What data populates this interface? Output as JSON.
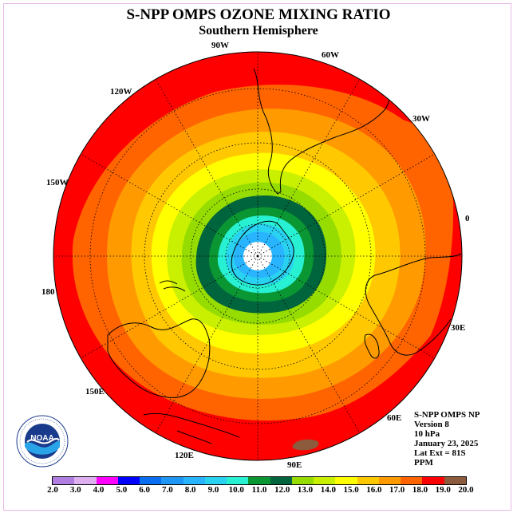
{
  "title": "S-NPP OMPS OZONE MIXING RATIO",
  "subtitle": "Southern Hemisphere",
  "longitude_labels": {
    "w90": "90W",
    "w60": "60W",
    "w30": "30W",
    "e0": "0",
    "e30": "30E",
    "e60": "60E",
    "e90": "90E",
    "e120": "120E",
    "e150": "150E",
    "d180": "180",
    "w150": "150W",
    "w120": "120W"
  },
  "info": {
    "line1": "S-NPP OMPS NP",
    "line2": "Version 8",
    "line3": "10 hPa",
    "line4": "January 23, 2025",
    "line5": "Lat Ext = 81S",
    "line6": "PPM"
  },
  "logo": {
    "text": "NOAA"
  },
  "colorbar": {
    "ticks": [
      "2.0",
      "3.0",
      "4.0",
      "5.0",
      "6.0",
      "7.0",
      "8.0",
      "9.0",
      "10.0",
      "11.0",
      "12.0",
      "13.0",
      "14.0",
      "15.0",
      "16.0",
      "17.0",
      "18.0",
      "19.0",
      "20.0"
    ],
    "colors": [
      "#b07ee0",
      "#dfb0f0",
      "#ff00ff",
      "#0000ff",
      "#0a6ef0",
      "#1e96f5",
      "#28b4ff",
      "#28d2f0",
      "#28f0d2",
      "#0a9632",
      "#00643c",
      "#96dc00",
      "#c8f000",
      "#ffff00",
      "#ffc800",
      "#ff9b00",
      "#ff6400",
      "#ff0000",
      "#8c5a3c"
    ]
  },
  "field": {
    "levels": [
      {
        "value": "18-19",
        "color": "#ff0000"
      },
      {
        "value": "17-18",
        "color": "#ff6400"
      },
      {
        "value": "16-17",
        "color": "#ff9b00"
      },
      {
        "value": "15-16",
        "color": "#ffc800"
      },
      {
        "value": "14-15",
        "color": "#ffff00"
      },
      {
        "value": "13-14",
        "color": "#c8f000"
      },
      {
        "value": "12-13",
        "color": "#96dc00"
      },
      {
        "value": "11-12",
        "color": "#00643c"
      },
      {
        "value": "10-11",
        "color": "#0a9632"
      },
      {
        "value": "9-10",
        "color": "#28f0d2"
      },
      {
        "value": "8-9",
        "color": "#28d2f0"
      },
      {
        "value": "7-8",
        "color": "#28b4ff"
      },
      {
        "value": "no data",
        "color": "#ffffff"
      }
    ]
  }
}
